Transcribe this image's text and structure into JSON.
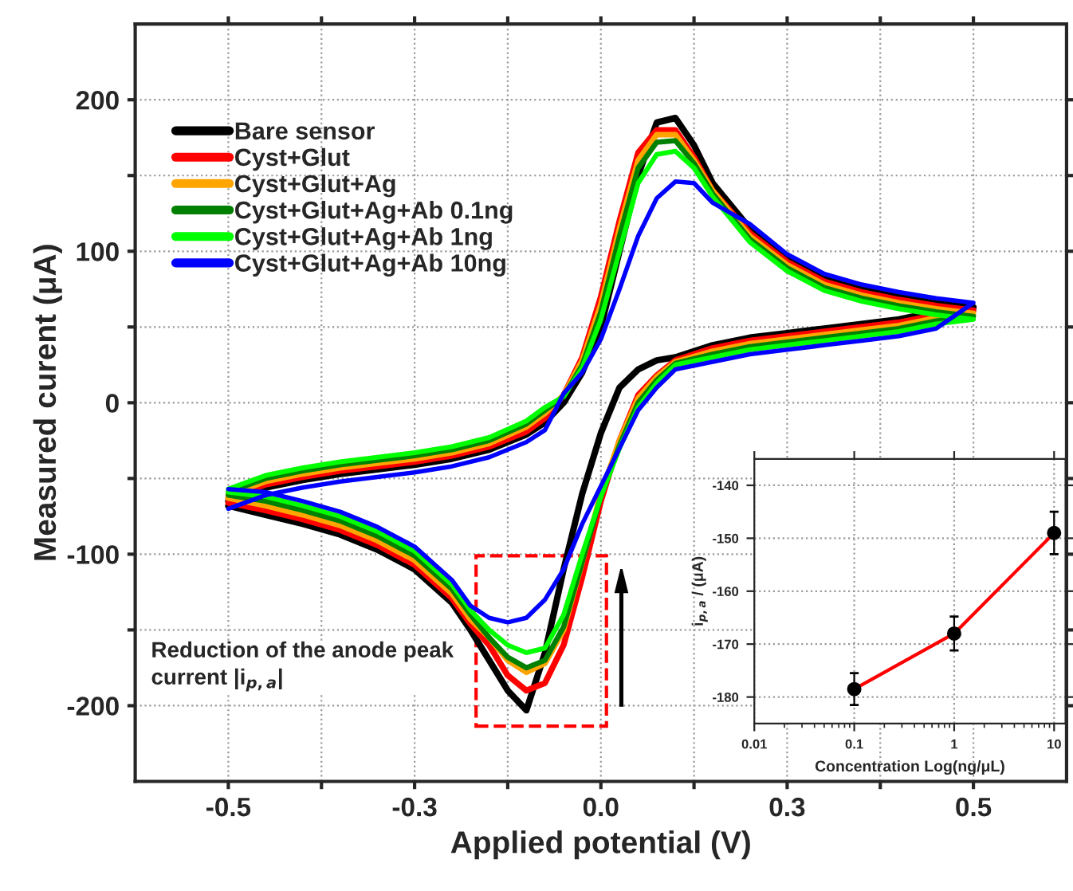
{
  "chart_data": [
    {
      "type": "line",
      "xlabel": "Applied potential (V)",
      "ylabel": "Measured curent (μA)",
      "x": [
        -0.5,
        -0.45,
        -0.4,
        -0.35,
        -0.3,
        -0.25,
        -0.2,
        -0.15,
        -0.1,
        -0.075,
        -0.05,
        -0.025,
        0,
        0.025,
        0.05,
        0.075,
        0.1,
        0.125,
        0.15,
        0.2,
        0.25,
        0.3,
        0.35,
        0.4,
        0.45,
        0.5,
        0.45,
        0.4,
        0.35,
        0.3,
        0.25,
        0.2,
        0.15,
        0.1,
        0.075,
        0.05,
        0.025,
        0,
        -0.025,
        -0.05,
        -0.075,
        -0.1,
        -0.125,
        -0.15,
        -0.175,
        -0.2,
        -0.25,
        -0.3,
        -0.35,
        -0.4,
        -0.45,
        -0.5
      ],
      "series": [
        {
          "name": "Bare sensor",
          "color": "#000000",
          "values": [
            -65,
            -56,
            -51,
            -47,
            -44,
            -41,
            -37,
            -31,
            -21,
            -13,
            0,
            20,
            50,
            100,
            150,
            185,
            188,
            170,
            145,
            115,
            95,
            82,
            75,
            70,
            66,
            63,
            60,
            55,
            52,
            49,
            46,
            43,
            38,
            30,
            28,
            22,
            10,
            -20,
            -60,
            -110,
            -165,
            -203,
            -190,
            -170,
            -150,
            -132,
            -110,
            -97,
            -87,
            -80,
            -74,
            -68
          ]
        },
        {
          "name": "Cyst+Glut",
          "color": "#ff0000",
          "values": [
            -63,
            -54,
            -49,
            -45,
            -42,
            -39,
            -35,
            -29,
            -19,
            -10,
            5,
            30,
            70,
            120,
            165,
            180,
            180,
            162,
            140,
            112,
            93,
            80,
            73,
            68,
            64,
            61,
            58,
            53,
            50,
            47,
            44,
            41,
            36,
            28,
            18,
            5,
            -25,
            -65,
            -115,
            -160,
            -185,
            -190,
            -180,
            -160,
            -146,
            -129,
            -107,
            -94,
            -84,
            -77,
            -71,
            -66
          ]
        },
        {
          "name": "Cyst+Glut+Ag",
          "color": "#ffa500",
          "values": [
            -61,
            -52,
            -47,
            -43,
            -40,
            -37,
            -33,
            -27,
            -16,
            -7,
            5,
            28,
            65,
            115,
            160,
            177,
            177,
            160,
            140,
            110,
            91,
            78,
            71,
            66,
            62,
            59,
            56,
            51,
            48,
            45,
            42,
            39,
            34,
            27,
            17,
            3,
            -25,
            -60,
            -105,
            -150,
            -172,
            -178,
            -170,
            -155,
            -143,
            -126,
            -104,
            -91,
            -81,
            -74,
            -68,
            -63
          ]
        },
        {
          "name": "Cyst+Glut+Ag+Ab 0.1ng",
          "color": "#008000",
          "values": [
            -59,
            -50,
            -45,
            -41,
            -38,
            -35,
            -31,
            -25,
            -14,
            -5,
            4,
            25,
            60,
            110,
            155,
            172,
            173,
            158,
            138,
            108,
            89,
            76,
            69,
            64,
            60,
            57,
            54,
            49,
            46,
            43,
            40,
            37,
            32,
            26,
            15,
            0,
            -28,
            -62,
            -105,
            -148,
            -170,
            -175,
            -168,
            -155,
            -140,
            -123,
            -101,
            -88,
            -78,
            -71,
            -65,
            -61
          ]
        },
        {
          "name": "Cyst+Glut+Ag+Ab 1ng",
          "color": "#00ff00",
          "values": [
            -57,
            -48,
            -43,
            -39,
            -36,
            -33,
            -29,
            -23,
            -12,
            -3,
            4,
            23,
            55,
            100,
            145,
            164,
            166,
            155,
            136,
            106,
            87,
            74,
            67,
            62,
            58,
            55,
            52,
            47,
            44,
            41,
            38,
            35,
            30,
            25,
            13,
            -3,
            -30,
            -62,
            -100,
            -140,
            -162,
            -165,
            -160,
            -150,
            -137,
            -120,
            -98,
            -85,
            -75,
            -68,
            -62,
            -59
          ]
        },
        {
          "name": "Cyst+Glut+Ag+Ab 10ng",
          "color": "#0000ff",
          "values": [
            -70,
            -61,
            -56,
            -52,
            -49,
            -46,
            -42,
            -36,
            -26,
            -18,
            6,
            20,
            42,
            75,
            110,
            135,
            146,
            145,
            132,
            118,
            98,
            85,
            78,
            73,
            69,
            66,
            49,
            44,
            41,
            38,
            35,
            32,
            27,
            22,
            10,
            -5,
            -30,
            -55,
            -80,
            -110,
            -130,
            -142,
            -145,
            -142,
            -134,
            -117,
            -95,
            -82,
            -72,
            -65,
            -59,
            -57
          ]
        }
      ],
      "xlim": [
        -0.625,
        0.625
      ],
      "xticks": [
        {
          "value": -0.5,
          "label": "-0.5"
        },
        {
          "value": -0.375,
          "label": null
        },
        {
          "value": -0.25,
          "label": "-0.3"
        },
        {
          "value": -0.125,
          "label": null
        },
        {
          "value": 0,
          "label": "0.0"
        },
        {
          "value": 0.125,
          "label": null
        },
        {
          "value": 0.25,
          "label": "0.3"
        },
        {
          "value": 0.375,
          "label": null
        },
        {
          "value": 0.5,
          "label": "0.5"
        }
      ],
      "ylim": [
        -250,
        250
      ],
      "yticks": [
        {
          "value": -200,
          "label": "-200"
        },
        {
          "value": -150,
          "label": null
        },
        {
          "value": -100,
          "label": "-100"
        },
        {
          "value": -50,
          "label": null
        },
        {
          "value": 0,
          "label": "0"
        },
        {
          "value": 50,
          "label": null
        },
        {
          "value": 100,
          "label": "100"
        },
        {
          "value": 150,
          "label": null
        },
        {
          "value": 200,
          "label": "200"
        }
      ],
      "grid": true,
      "legend": "top left",
      "line_style": "solid",
      "annotations": [
        "Reduction of the anode peak current |i$_{p,a}$|"
      ]
    },
    {
      "type": "line",
      "xlabel": "Concentration Log(ng/μL)",
      "ylabel": "i$_{p,a}$ / (μA)",
      "log": "x",
      "x": [
        0.1,
        1,
        10
      ],
      "series": [
        {
          "type": "line",
          "color": "#ff0000",
          "values": [
            -178.5,
            -168,
            -149
          ]
        },
        {
          "type": "scatter",
          "color": "#000000",
          "marker": "circle",
          "values": [
            -178.5,
            -168,
            -149
          ],
          "errors": [
            3,
            3.2,
            4
          ]
        }
      ],
      "xlim": [
        0.01,
        13
      ],
      "xticks": [
        0.01,
        0.1,
        1,
        10
      ],
      "ylim": [
        -185,
        -135
      ],
      "yticks": [
        -180,
        -170,
        -160,
        -150,
        -140
      ],
      "grid": true
    }
  ]
}
